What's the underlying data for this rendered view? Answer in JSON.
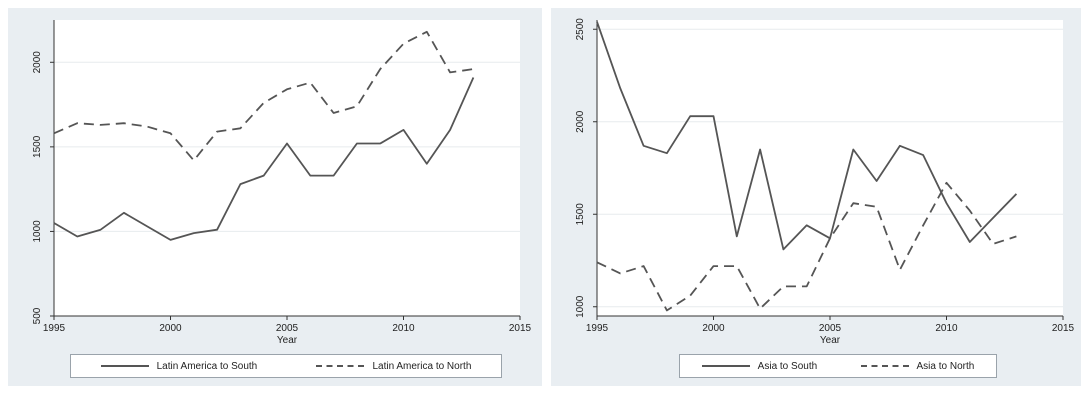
{
  "chart_data": [
    {
      "type": "line",
      "title": "",
      "xlabel": "Year",
      "ylabel": "",
      "xlim": [
        1995,
        2015
      ],
      "ylim": [
        500,
        2250
      ],
      "xticks": [
        "1995",
        "2000",
        "2005",
        "2010",
        "2015"
      ],
      "yticks": [
        "500",
        "1000",
        "1500",
        "2000"
      ],
      "grid": true,
      "legend_position": "bottom",
      "series": [
        {
          "name": "Latin America to South",
          "style": "solid",
          "color": "#555555",
          "x": [
            1995,
            1996,
            1997,
            1998,
            1999,
            2000,
            2001,
            2002,
            2003,
            2004,
            2005,
            2006,
            2007,
            2008,
            2009,
            2010,
            2011,
            2012,
            2013
          ],
          "y": [
            1050,
            970,
            1010,
            1110,
            1030,
            950,
            990,
            1010,
            1280,
            1330,
            1520,
            1330,
            1330,
            1520,
            1520,
            1600,
            1400,
            1600,
            1910
          ]
        },
        {
          "name": "Latin America to North",
          "style": "dashed",
          "color": "#555555",
          "x": [
            1995,
            1996,
            1997,
            1998,
            1999,
            2000,
            2001,
            2002,
            2003,
            2004,
            2005,
            2006,
            2007,
            2008,
            2009,
            2010,
            2011,
            2012,
            2013
          ],
          "y": [
            1580,
            1640,
            1630,
            1640,
            1620,
            1580,
            1420,
            1590,
            1610,
            1760,
            1840,
            1880,
            1700,
            1740,
            1960,
            2110,
            2180,
            1940,
            1960
          ]
        }
      ]
    },
    {
      "type": "line",
      "title": "",
      "xlabel": "Year",
      "ylabel": "",
      "xlim": [
        1995,
        2015
      ],
      "ylim": [
        950,
        2550
      ],
      "xticks": [
        "1995",
        "2000",
        "2005",
        "2010",
        "2015"
      ],
      "yticks": [
        "1000",
        "1500",
        "2000",
        "2500"
      ],
      "grid": true,
      "legend_position": "bottom",
      "series": [
        {
          "name": "Asia to South",
          "style": "solid",
          "color": "#555555",
          "x": [
            1995,
            1996,
            1997,
            1998,
            1999,
            2000,
            2001,
            2002,
            2003,
            2004,
            2005,
            2006,
            2007,
            2008,
            2009,
            2010,
            2011,
            2012,
            2013
          ],
          "y": [
            2540,
            2180,
            1870,
            1830,
            2030,
            2030,
            1380,
            1850,
            1310,
            1440,
            1370,
            1850,
            1680,
            1870,
            1820,
            1560,
            1350,
            1480,
            1610
          ]
        },
        {
          "name": "Asia to North",
          "style": "dashed",
          "color": "#555555",
          "x": [
            1995,
            1996,
            1997,
            1998,
            1999,
            2000,
            2001,
            2002,
            2003,
            2004,
            2005,
            2006,
            2007,
            2008,
            2009,
            2010,
            2011,
            2012,
            2013
          ],
          "y": [
            1240,
            1180,
            1220,
            980,
            1060,
            1220,
            1220,
            990,
            1110,
            1110,
            1370,
            1560,
            1540,
            1200,
            1440,
            1670,
            1520,
            1340,
            1380
          ]
        }
      ]
    }
  ]
}
